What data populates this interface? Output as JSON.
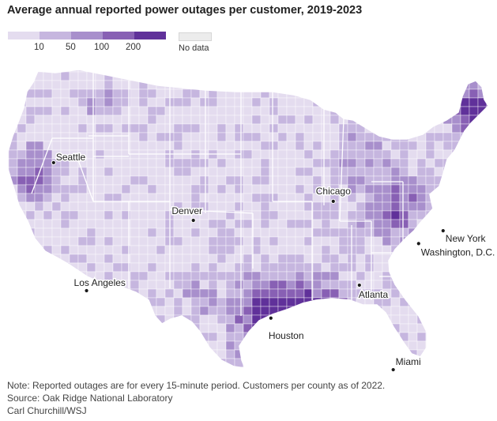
{
  "title": "Average annual reported power outages per customer, 2019-2023",
  "legend": {
    "swatches": [
      {
        "color": "#e4dcef"
      },
      {
        "color": "#c6b6df"
      },
      {
        "color": "#a88fcc"
      },
      {
        "color": "#8860b4"
      },
      {
        "color": "#60319a"
      }
    ],
    "thresholds": [
      "10",
      "50",
      "100",
      "200"
    ],
    "nodata_label": "No data",
    "nodata_color": "#ececec"
  },
  "cities": [
    {
      "name": "Seattle",
      "lon": -122.33,
      "lat": 47.61,
      "anchor": "start",
      "dx": 3,
      "dy": -3
    },
    {
      "name": "Chicago",
      "lon": -87.63,
      "lat": 41.88,
      "anchor": "middle",
      "dx": 0,
      "dy": -9
    },
    {
      "name": "New York",
      "lon": -74.0,
      "lat": 40.71,
      "anchor": "start",
      "dx": 3,
      "dy": 14
    },
    {
      "name": "Denver",
      "lon": -104.99,
      "lat": 39.74,
      "anchor": "middle",
      "dx": -8,
      "dy": -8
    },
    {
      "name": "Washington, D.C.",
      "lon": -77.04,
      "lat": 38.9,
      "anchor": "start",
      "dx": 3,
      "dy": 15
    },
    {
      "name": "Los Angeles",
      "lon": -118.24,
      "lat": 34.05,
      "anchor": "start",
      "dx": -16,
      "dy": -6
    },
    {
      "name": "Atlanta",
      "lon": -84.39,
      "lat": 33.75,
      "anchor": "start",
      "dx": -1,
      "dy": 16
    },
    {
      "name": "Houston",
      "lon": -95.37,
      "lat": 29.76,
      "anchor": "start",
      "dx": -3,
      "dy": 26
    },
    {
      "name": "Miami",
      "lon": -80.19,
      "lat": 25.76,
      "anchor": "start",
      "dx": 3,
      "dy": -6
    }
  ],
  "footer": {
    "note": "Note: Reported outages are for every 15-minute period. Customers per county as of 2022.",
    "source": "Source: Oak Ridge National Laboratory",
    "credit": "Carl Churchill/WSJ"
  }
}
